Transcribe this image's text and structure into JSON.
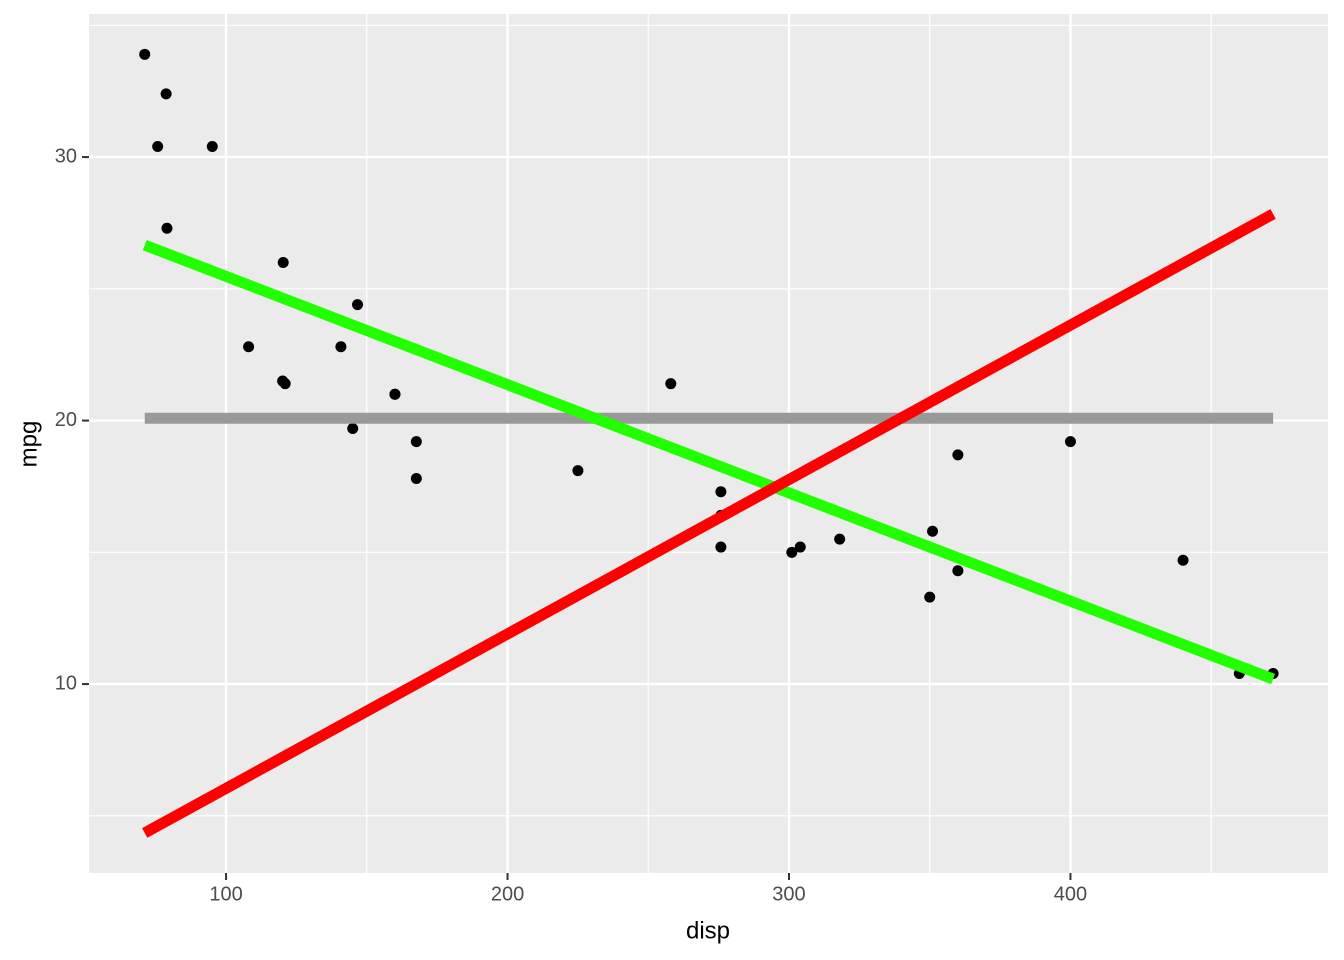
{
  "chart_data": {
    "type": "scatter",
    "x_label": "disp",
    "y_label": "mpg",
    "x": [
      160,
      160,
      108,
      258,
      360,
      225,
      360,
      146.7,
      140.8,
      167.6,
      167.6,
      275.8,
      275.8,
      275.8,
      472,
      460,
      440,
      78.7,
      75.7,
      71.1,
      120.1,
      318,
      304,
      350,
      400,
      79,
      120.3,
      95.1,
      351,
      145,
      301,
      121
    ],
    "y": [
      21,
      21,
      22.8,
      21.4,
      18.7,
      18.1,
      14.3,
      24.4,
      22.8,
      19.2,
      17.8,
      16.4,
      17.3,
      15.2,
      10.4,
      10.4,
      14.7,
      32.4,
      30.4,
      33.9,
      21.5,
      15.5,
      15.2,
      13.3,
      19.2,
      27.3,
      26,
      30.4,
      15.8,
      19.7,
      15,
      21.4
    ],
    "point_color": "#000000",
    "lines": [
      {
        "color": "#999999",
        "x": [
          71.1,
          472
        ],
        "y": [
          20.09,
          20.09
        ]
      },
      {
        "color": "#22ff00",
        "x": [
          71.1,
          472
        ],
        "y": [
          26.66,
          10.19
        ]
      },
      {
        "color": "#ff0000",
        "x": [
          71.1,
          472
        ],
        "y": [
          4.35,
          27.84
        ]
      }
    ],
    "xlim": [
      51.3,
      491.5
    ],
    "ylim": [
      2.83,
      35.43
    ],
    "xticks": [
      100,
      200,
      300,
      400
    ],
    "yticks": [
      10,
      20,
      30
    ],
    "x_minor": [
      150,
      250,
      350,
      450
    ],
    "y_minor": [
      5,
      15,
      25,
      35
    ],
    "grid": true,
    "background": "#ebebeb"
  }
}
